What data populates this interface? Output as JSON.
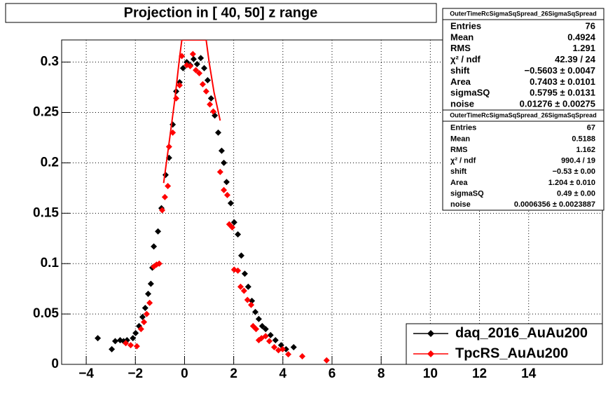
{
  "chart_data": {
    "type": "scatter",
    "title": "Projection in [  40,  50] z range",
    "xlim": [
      -5,
      17
    ],
    "ylim": [
      0,
      0.322
    ],
    "xticks": [
      {
        "value": -4,
        "label": "−4"
      },
      {
        "value": -2,
        "label": "−2"
      },
      0,
      2,
      4,
      6,
      8,
      10,
      12,
      14
    ],
    "yticks": [
      0,
      0.05,
      0.1,
      0.15,
      0.2,
      0.25,
      0.3
    ],
    "grid": true,
    "legend": "lower-right",
    "series": [
      {
        "name": "daq_2016_AuAu200",
        "color": "#000000",
        "x": [
          -3.53,
          -2.96,
          -2.82,
          -2.62,
          -2.48,
          -2.34,
          -2.1,
          -1.99,
          -1.85,
          -1.71,
          -1.6,
          -1.48,
          -1.37,
          -1.31,
          -1.25,
          -1.08,
          -0.94,
          -0.77,
          -0.63,
          -0.48,
          -0.34,
          -0.2,
          -0.06,
          0.09,
          0.23,
          0.37,
          0.51,
          0.66,
          0.8,
          0.94,
          1.08,
          1.23,
          1.37,
          1.51,
          1.6,
          1.71,
          1.88,
          2.02,
          2.17,
          2.31,
          2.45,
          2.59,
          2.74,
          2.88,
          3.02,
          3.16,
          3.3,
          3.5,
          3.7,
          3.93,
          4.13,
          4.44
        ],
        "values": [
          0.026,
          0.015,
          0.023,
          0.024,
          0.023,
          0.024,
          0.026,
          0.031,
          0.038,
          0.047,
          0.056,
          0.07,
          0.08,
          0.096,
          0.117,
          0.132,
          0.155,
          0.188,
          0.205,
          0.238,
          0.271,
          0.28,
          0.294,
          0.3,
          0.297,
          0.303,
          0.298,
          0.304,
          0.294,
          0.282,
          0.264,
          0.247,
          0.23,
          0.212,
          0.2,
          0.181,
          0.16,
          0.141,
          0.129,
          0.108,
          0.09,
          0.077,
          0.063,
          0.052,
          0.045,
          0.038,
          0.035,
          0.029,
          0.024,
          0.019,
          0.015,
          0.017
        ]
      },
      {
        "name": "TpcRS_AuAu200",
        "color": "#ff0000",
        "x": [
          -2.39,
          -2.19,
          -1.94,
          -1.77,
          -1.65,
          -1.54,
          -1.42,
          -1.25,
          -1.14,
          -1.03,
          -0.91,
          -0.8,
          -0.68,
          -0.63,
          -0.48,
          -0.34,
          -0.2,
          -0.11,
          0.09,
          0.23,
          0.34,
          0.46,
          0.6,
          0.74,
          0.88,
          1.03,
          1.17,
          1.45,
          1.6,
          1.74,
          1.82,
          1.94,
          2.02,
          2.17,
          2.28,
          2.42,
          2.56,
          2.71,
          2.79,
          2.91,
          3.02,
          3.13,
          3.3,
          3.45,
          3.65,
          3.82,
          3.99,
          4.22,
          4.79,
          5.78
        ],
        "values": [
          0.021,
          0.019,
          0.018,
          0.035,
          0.042,
          0.05,
          0.061,
          0.097,
          0.099,
          0.1,
          0.153,
          0.166,
          0.177,
          0.216,
          0.23,
          0.264,
          0.277,
          0.306,
          0.297,
          0.296,
          0.308,
          0.292,
          0.289,
          0.278,
          0.271,
          0.258,
          0.251,
          0.191,
          0.173,
          0.168,
          0.139,
          0.136,
          0.094,
          0.093,
          0.077,
          0.073,
          0.064,
          0.059,
          0.038,
          0.035,
          0.024,
          0.026,
          0.028,
          0.023,
          0.017,
          0.014,
          0.015,
          0.01,
          0.008,
          0.004
        ]
      }
    ],
    "fit": {
      "color": "#ff0000",
      "x": [
        -0.85,
        -0.6,
        -0.4,
        -0.2,
        -0.11,
        0.88,
        1.0,
        1.2,
        1.45
      ],
      "values": [
        0.18,
        0.225,
        0.262,
        0.305,
        0.322,
        0.322,
        0.3,
        0.27,
        0.242
      ]
    },
    "stats_boxes": [
      {
        "title": "OuterTimeRcSigmaSqSpread_26SigmaSqSpread",
        "rows": [
          [
            "Entries",
            "76"
          ],
          [
            "Mean",
            "0.4924"
          ],
          [
            "RMS",
            "1.291"
          ],
          [
            "χ² / ndf",
            "42.39 / 24"
          ],
          [
            "shift",
            "−0.5603 ± 0.0047"
          ],
          [
            "Area",
            "0.7403 ± 0.0101"
          ],
          [
            "sigmaSQ",
            "0.5795 ± 0.0131"
          ],
          [
            "noise",
            "0.01276 ± 0.00275"
          ]
        ]
      },
      {
        "title": "OuterTimeRcSigmaSqSpread_26SigmaSqSpread",
        "rows": [
          [
            "Entries",
            "67"
          ],
          [
            "Mean",
            "0.5188"
          ],
          [
            "RMS",
            "1.162"
          ],
          [
            "χ² / ndf",
            "990.4 / 19"
          ],
          [
            "shift",
            "−0.53 ± 0.00"
          ],
          [
            "Area",
            "1.204 ± 0.010"
          ],
          [
            "sigmaSQ",
            "0.49 ± 0.00"
          ],
          [
            "noise",
            "0.0006356 ± 0.0023887"
          ]
        ]
      }
    ]
  }
}
